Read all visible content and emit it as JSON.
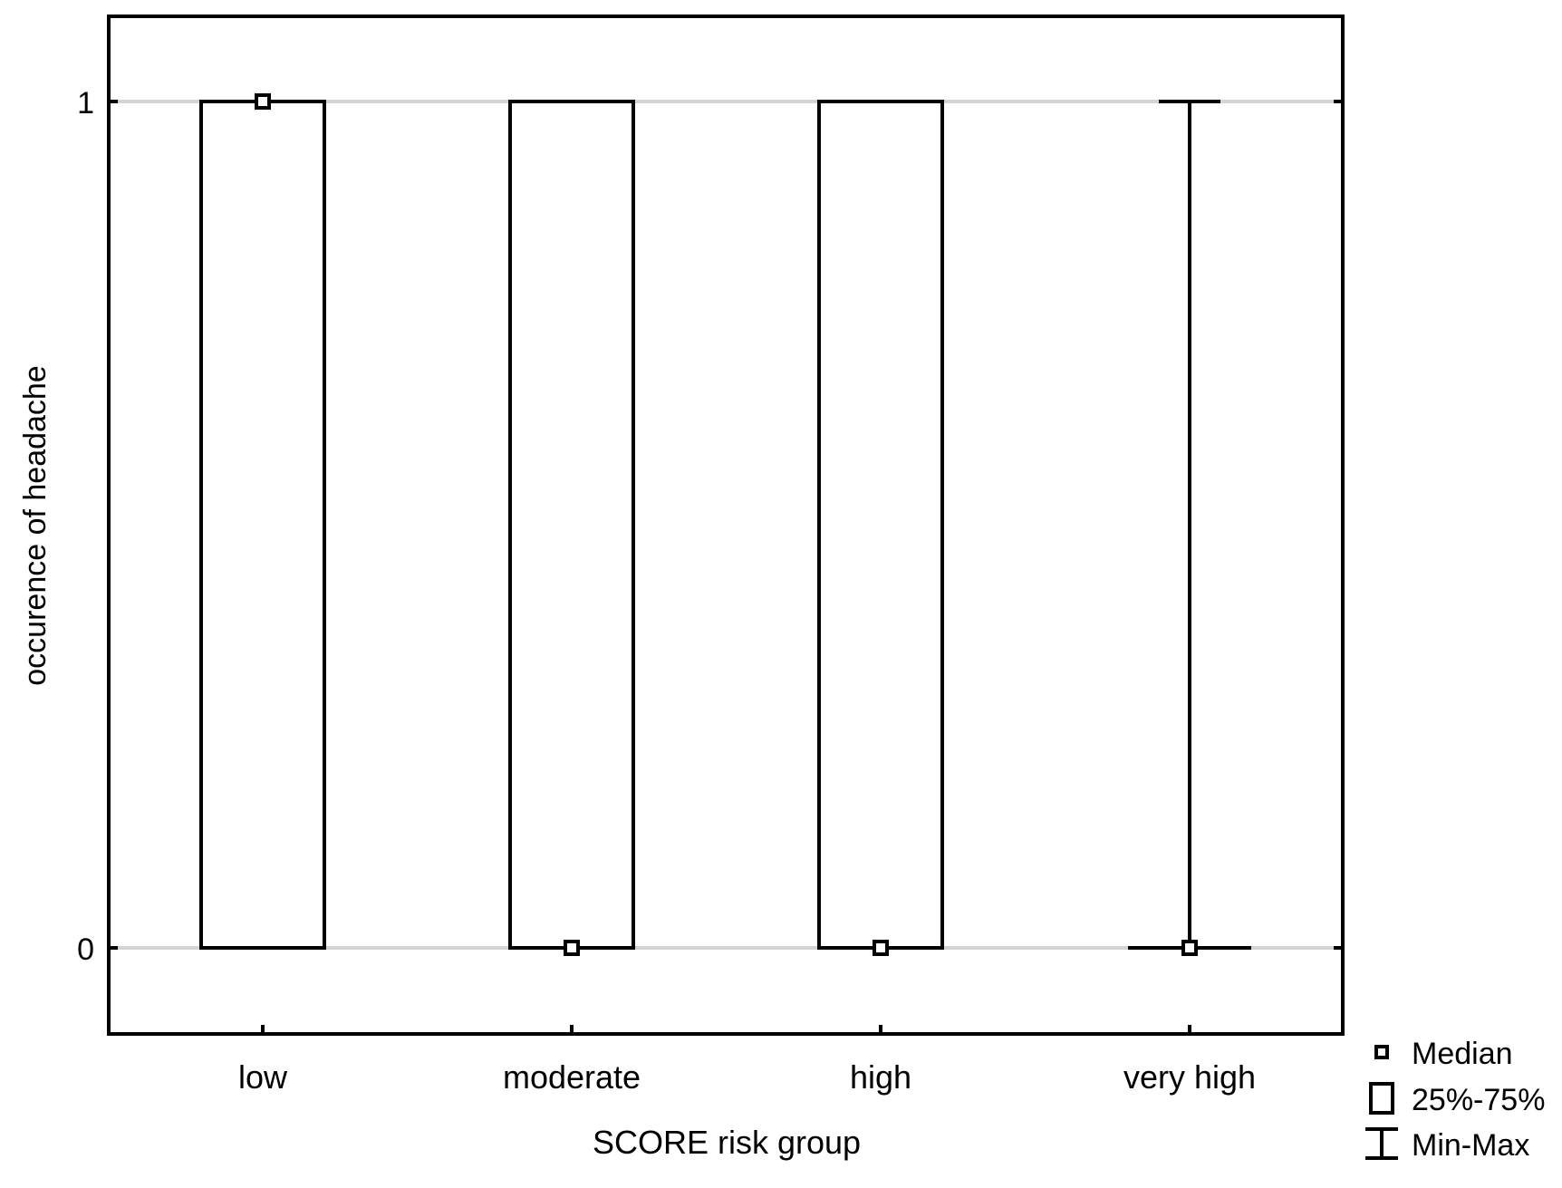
{
  "chart_data": {
    "type": "box",
    "title": "",
    "xlabel": "SCORE risk group",
    "ylabel": "occurence of headache",
    "categories": [
      "low",
      "moderate",
      "high",
      "very high"
    ],
    "y_ticks": [
      0,
      1
    ],
    "y_tick_labels": [
      "0",
      "1"
    ],
    "ylim": [
      -0.1,
      1.1
    ],
    "grid": "horizontal at ticks",
    "boxes": [
      {
        "category": "low",
        "median": 1,
        "q1": 0,
        "q3": 1,
        "min": 0,
        "max": 1
      },
      {
        "category": "moderate",
        "median": 0,
        "q1": 0,
        "q3": 1,
        "min": 0,
        "max": 1
      },
      {
        "category": "high",
        "median": 0,
        "q1": 0,
        "q3": 1,
        "min": 0,
        "max": 1
      },
      {
        "category": "very high",
        "median": 0,
        "q1": 0,
        "q3": 0,
        "min": 0,
        "max": 1
      }
    ],
    "legend": {
      "position": "bottom-right",
      "items": [
        {
          "symbol": "median-square",
          "label": "Median"
        },
        {
          "symbol": "box",
          "label": "25%-75%"
        },
        {
          "symbol": "whisker",
          "label": "Min-Max"
        }
      ]
    },
    "colors": {
      "line": "#000000",
      "grid": "#d4d4d4",
      "background": "#ffffff"
    }
  }
}
